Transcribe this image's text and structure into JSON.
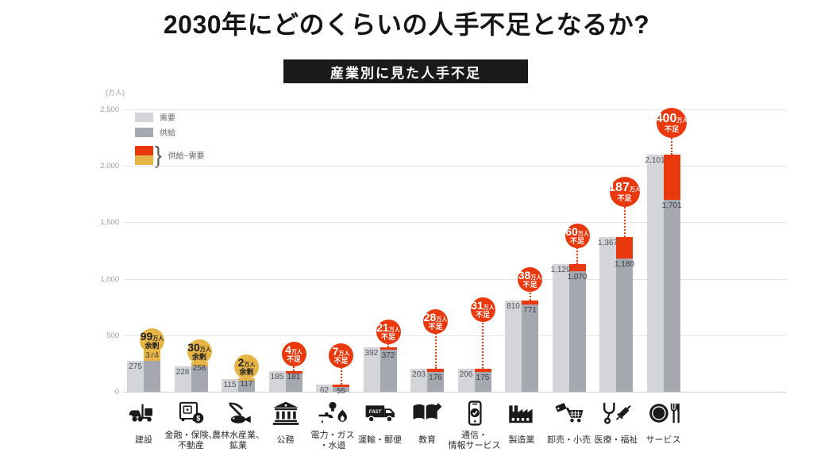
{
  "page": {
    "title": "2030年にどのくらいの人手不足となるか?",
    "banner": "産業別に見た人手不足"
  },
  "axis": {
    "unit_label": "(万人)"
  },
  "legend": {
    "demand": "需要",
    "supply": "供給",
    "diff": "供給−需要"
  },
  "colors": {
    "demand_bar": "#d3d5d9",
    "supply_bar": "#a5a8af",
    "shortage": "#e8380c",
    "surplus": "#e6b545",
    "banner_bg": "#1a1a1a",
    "icon": "#1a1a1a"
  },
  "chart_data": {
    "type": "bar",
    "title": "産業別に見た人手不足",
    "subtitle": "2030年にどのくらいの人手不足となるか?",
    "unit": "万人",
    "ylim": [
      0,
      2500
    ],
    "yticks": [
      0,
      500,
      1000,
      1500,
      2000,
      2500
    ],
    "series": [
      "需要",
      "供給"
    ],
    "legend_position": "top-left",
    "grid": true,
    "groups": [
      {
        "category": "建設",
        "label_lines": [
          "建設"
        ],
        "icon": "construction-vehicles-icon",
        "demand": 275,
        "supply": 374,
        "demand_label": "275",
        "supply_label": "374",
        "gap_value": "99",
        "gap_unit": "万人",
        "gap_word": "余剰",
        "gap_type": "surplus"
      },
      {
        "category": "金融・保険、不動産",
        "label_lines": [
          "金融・保険、",
          "不動産"
        ],
        "icon": "safe-coin-icon",
        "demand": 228,
        "supply": 258,
        "demand_label": "228",
        "supply_label": "258",
        "gap_value": "30",
        "gap_unit": "万人",
        "gap_word": "余剰",
        "gap_type": "surplus"
      },
      {
        "category": "農林水産業、鉱業",
        "label_lines": [
          "農林水産業、",
          "鉱業"
        ],
        "icon": "pickaxe-fish-icon",
        "demand": 115,
        "supply": 117,
        "demand_label": "115",
        "supply_label": "117",
        "gap_value": "2",
        "gap_unit": "万人",
        "gap_word": "余剰",
        "gap_type": "surplus"
      },
      {
        "category": "公務",
        "label_lines": [
          "公務"
        ],
        "icon": "government-building-icon",
        "demand": 185,
        "supply": 181,
        "demand_label": "185",
        "supply_label": "181",
        "gap_value": "4",
        "gap_unit": "万人",
        "gap_word": "不足",
        "gap_type": "shortage"
      },
      {
        "category": "電力・ガス・水道",
        "label_lines": [
          "電力・ガス",
          "・水道"
        ],
        "icon": "power-gas-water-icon",
        "demand": 62,
        "supply": 55,
        "demand_label": "62",
        "supply_label": "55",
        "gap_value": "7",
        "gap_unit": "万人",
        "gap_word": "不足",
        "gap_type": "shortage"
      },
      {
        "category": "運輸・郵便",
        "label_lines": [
          "運輸・郵便"
        ],
        "icon": "delivery-truck-icon",
        "icon_text": "FAST",
        "demand": 392,
        "supply": 372,
        "demand_label": "392",
        "supply_label": "372",
        "gap_value": "21",
        "gap_unit": "万人",
        "gap_word": "不足",
        "gap_type": "shortage"
      },
      {
        "category": "教育",
        "label_lines": [
          "教育"
        ],
        "icon": "book-pencil-icon",
        "demand": 203,
        "supply": 176,
        "demand_label": "203",
        "supply_label": "176",
        "gap_value": "28",
        "gap_unit": "万人",
        "gap_word": "不足",
        "gap_type": "shortage"
      },
      {
        "category": "通信・情報サービス",
        "label_lines": [
          "通信・",
          "情報サービス"
        ],
        "icon": "smartphone-check-icon",
        "demand": 206,
        "supply": 175,
        "demand_label": "206",
        "supply_label": "175",
        "gap_value": "31",
        "gap_unit": "万人",
        "gap_word": "不足",
        "gap_type": "shortage"
      },
      {
        "category": "製造業",
        "label_lines": [
          "製造業"
        ],
        "icon": "factory-icon",
        "demand": 810,
        "supply": 771,
        "demand_label": "810",
        "supply_label": "771",
        "gap_value": "38",
        "gap_unit": "万人",
        "gap_word": "不足",
        "gap_type": "shortage"
      },
      {
        "category": "卸売・小売",
        "label_lines": [
          "卸売・小売"
        ],
        "icon": "tag-cart-icon",
        "demand": 1129,
        "supply": 1070,
        "demand_label": "1,129",
        "supply_label": "1,070",
        "gap_value": "60",
        "gap_unit": "万人",
        "gap_word": "不足",
        "gap_type": "shortage"
      },
      {
        "category": "医療・福祉",
        "label_lines": [
          "医療・福祉"
        ],
        "icon": "stethoscope-syringe-icon",
        "demand": 1367,
        "supply": 1180,
        "demand_label": "1,367",
        "supply_label": "1,180",
        "gap_value": "187",
        "gap_unit": "万人",
        "gap_word": "不足",
        "gap_type": "shortage"
      },
      {
        "category": "サービス",
        "label_lines": [
          "サービス"
        ],
        "icon": "plate-cutlery-icon",
        "demand": 2101,
        "supply": 1701,
        "demand_label": "2,101",
        "supply_label": "1,701",
        "gap_value": "400",
        "gap_unit": "万人",
        "gap_word": "不足",
        "gap_type": "shortage"
      }
    ]
  }
}
